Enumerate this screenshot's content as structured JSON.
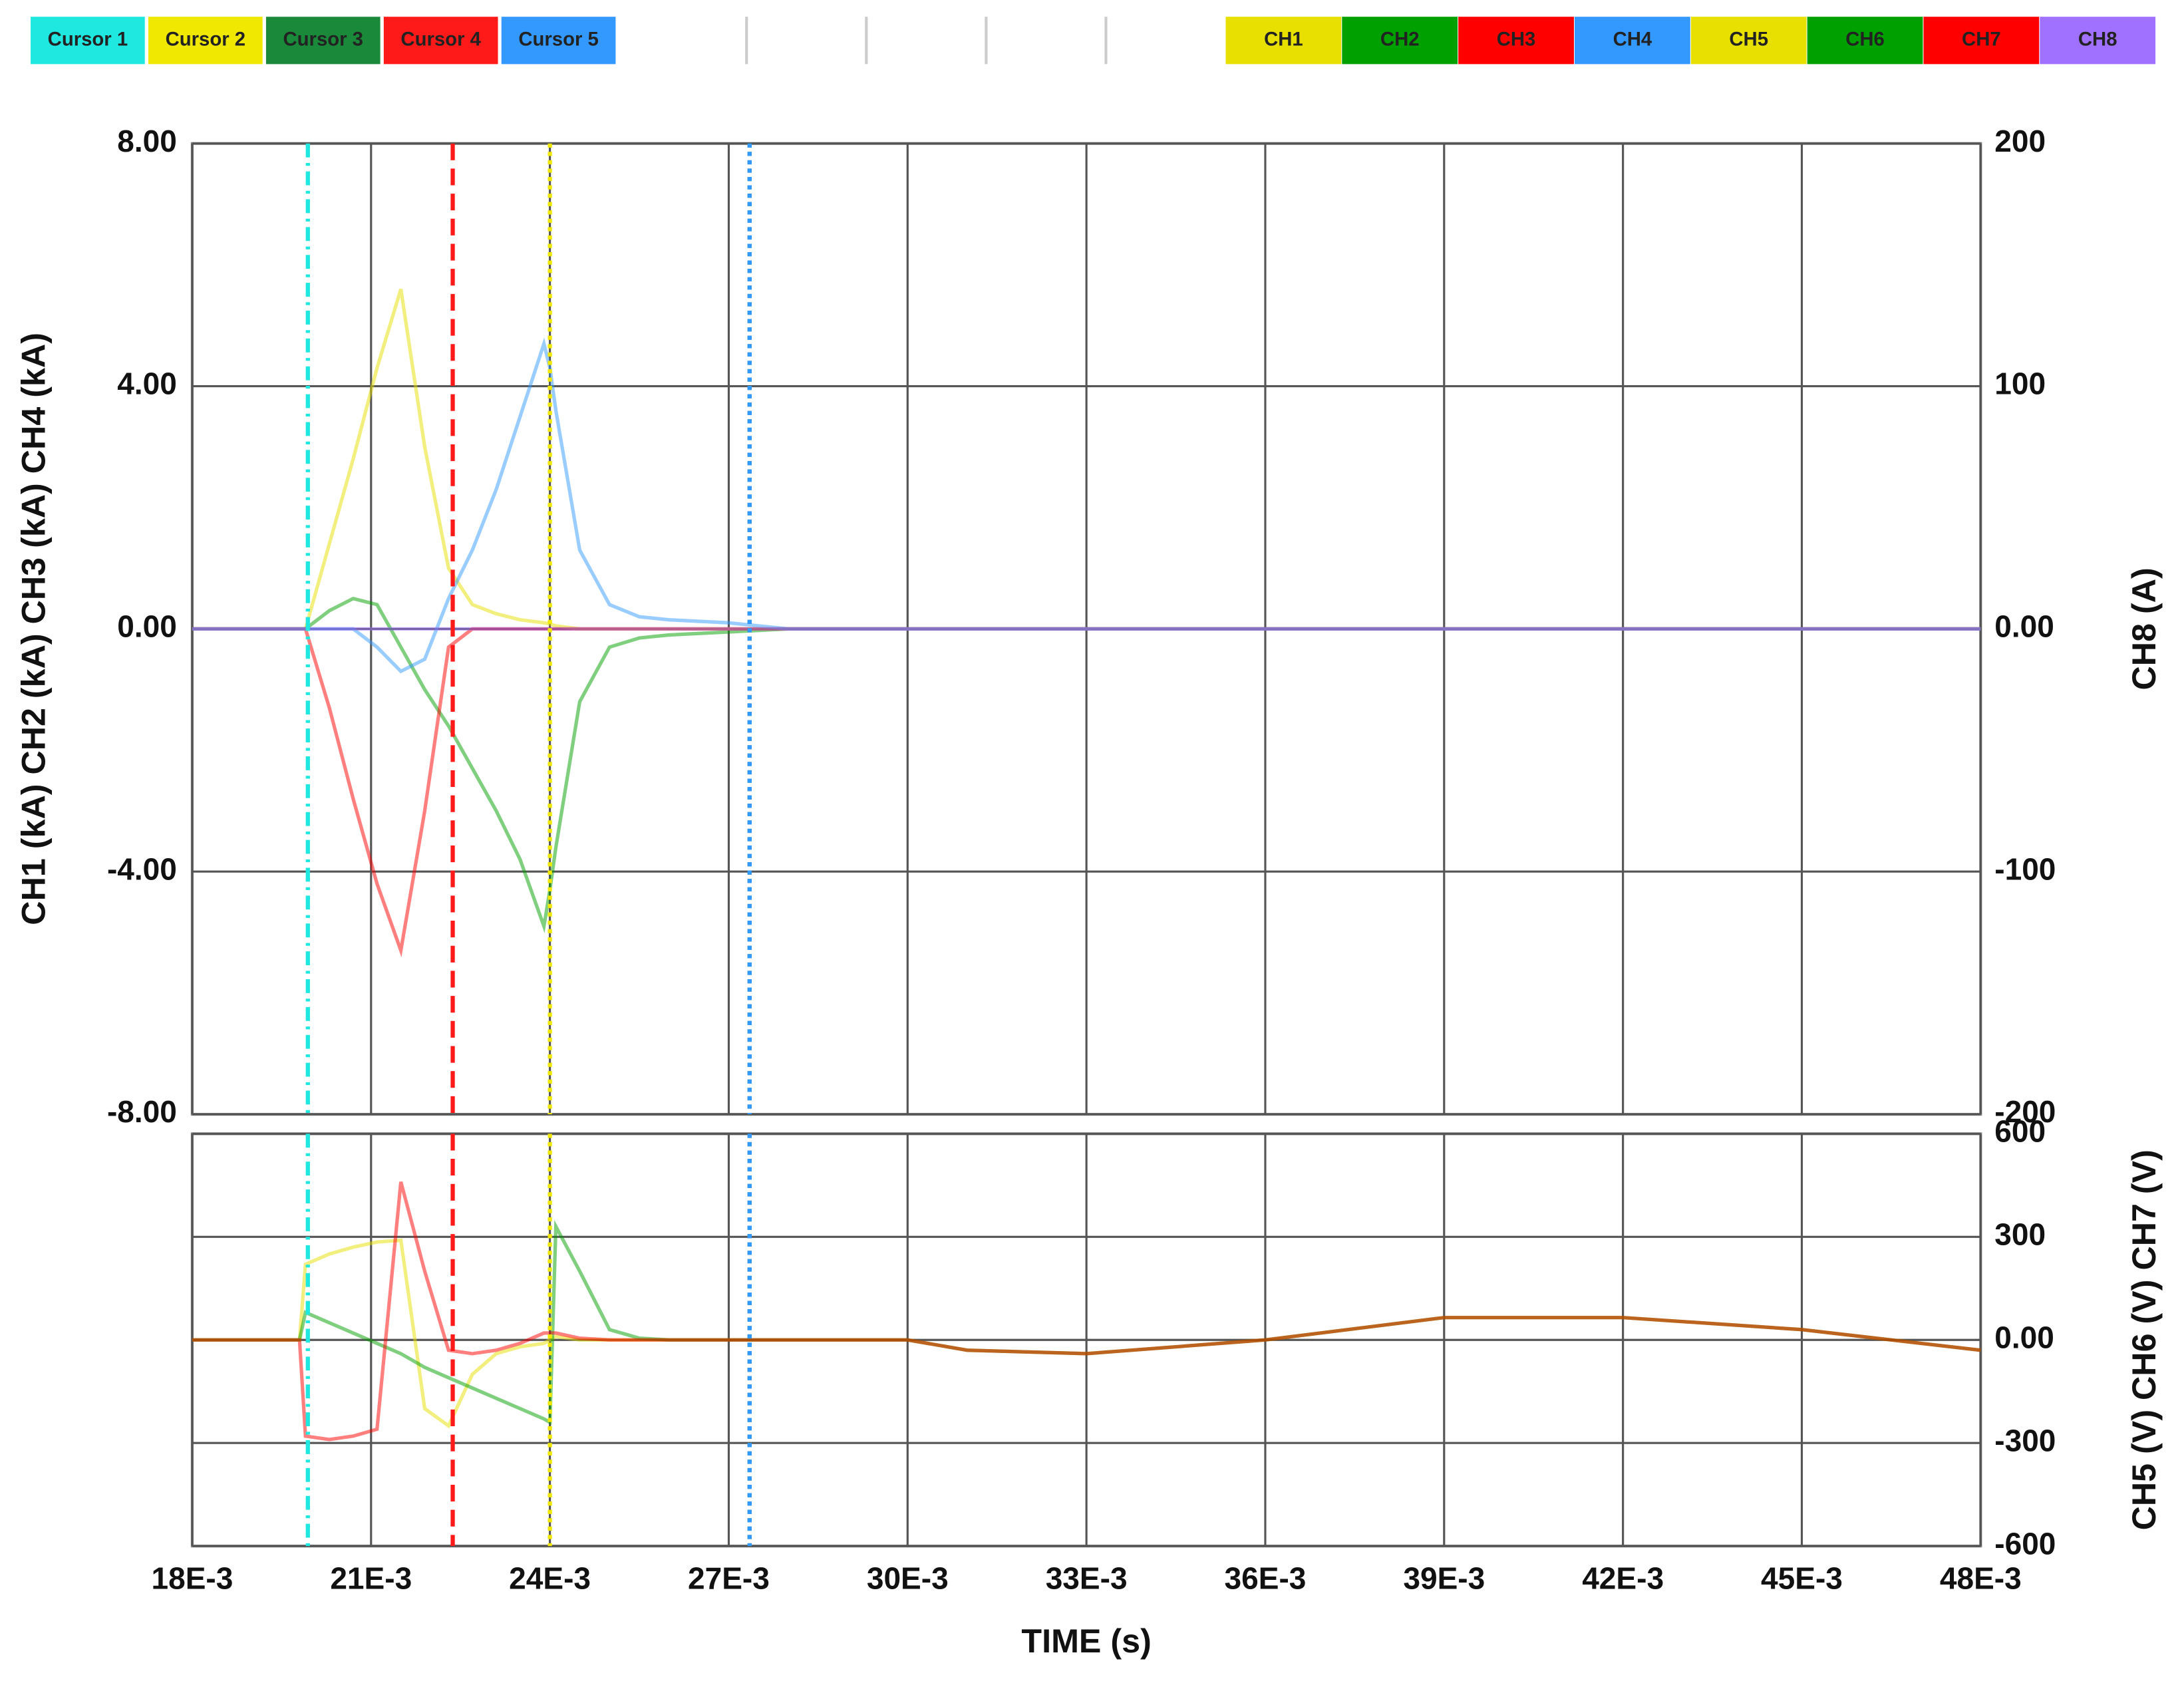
{
  "cursors": [
    {
      "name": "Cursor 1",
      "color": "#1ee8e0",
      "x": 0.01994
    },
    {
      "name": "Cursor 2",
      "color": "#f0e800",
      "x": 0.024
    },
    {
      "name": "Cursor 3",
      "color": "#1a8a3a",
      "x": 0.02735
    },
    {
      "name": "Cursor 4",
      "color": "#ff1a1a",
      "x": 0.02237
    },
    {
      "name": "Cursor 5",
      "color": "#3399ff",
      "x": 0.02735
    }
  ],
  "chart_data": [
    {
      "type": "line",
      "ylabel": "CH1 (kA) CH2 (kA) CH3 (kA) CH4 (kA)",
      "y2label": "CH8 (A)",
      "x": [
        0.018,
        0.0198,
        0.0199,
        0.0203,
        0.0207,
        0.0211,
        0.0215,
        0.0219,
        0.0223,
        0.0227,
        0.0231,
        0.0235,
        0.0239,
        0.024,
        0.0241,
        0.0245,
        0.025,
        0.0255,
        0.026,
        0.027,
        0.028,
        0.03,
        0.031,
        0.033,
        0.036,
        0.039,
        0.042,
        0.045,
        0.048
      ],
      "xlim": [
        0.018,
        0.048
      ],
      "xticks": [
        0.018,
        0.021,
        0.024,
        0.027,
        0.03,
        0.033,
        0.036,
        0.039,
        0.042,
        0.045,
        0.048
      ],
      "ylim": [
        -8,
        8
      ],
      "yticks": [
        {
          "value": 8,
          "label": "8.00"
        },
        {
          "value": 4,
          "label": "4.00"
        },
        {
          "value": 0,
          "label": "0.00"
        },
        {
          "value": -4,
          "label": "-4.00"
        },
        {
          "value": -8,
          "label": "-8.00"
        }
      ],
      "y2lim": [
        -200,
        200
      ],
      "y2ticks": [
        200,
        100,
        {
          "value": 0,
          "label": "0.00"
        },
        -100,
        -200
      ],
      "grid": true,
      "series": [
        {
          "name": "CH1",
          "color": "#e8e000",
          "values": [
            0,
            0,
            0,
            1.4,
            2.8,
            4.3,
            5.6,
            3.0,
            1.0,
            0.4,
            0.25,
            0.15,
            0.1,
            0.08,
            0.05,
            0,
            0,
            0,
            0,
            0,
            0,
            0,
            0,
            0,
            0,
            0,
            0,
            0,
            0
          ]
        },
        {
          "name": "CH2",
          "color": "#00a000",
          "values": [
            0,
            0,
            0,
            0.3,
            0.5,
            0.4,
            -0.3,
            -1.0,
            -1.6,
            -2.3,
            -3.0,
            -3.8,
            -4.9,
            -4.3,
            -3.6,
            -1.2,
            -0.3,
            -0.15,
            -0.1,
            -0.05,
            0,
            0,
            0,
            0,
            0,
            0,
            0,
            0,
            0
          ]
        },
        {
          "name": "CH3",
          "color": "#ff0000",
          "values": [
            0,
            0,
            0,
            -1.3,
            -2.8,
            -4.2,
            -5.3,
            -3.0,
            -0.3,
            0,
            0,
            0,
            0,
            0,
            0,
            0,
            0,
            0,
            0,
            0,
            0,
            0,
            0,
            0,
            0,
            0,
            0,
            0,
            0
          ]
        },
        {
          "name": "CH4",
          "color": "#3399ff",
          "values": [
            0,
            0,
            0,
            0,
            0,
            -0.3,
            -0.7,
            -0.5,
            0.5,
            1.3,
            2.3,
            3.5,
            4.7,
            4.3,
            3.6,
            1.3,
            0.4,
            0.2,
            0.15,
            0.1,
            0,
            0,
            0,
            0,
            0,
            0,
            0,
            0,
            0
          ]
        },
        {
          "name": "CH8",
          "color": "#a070ff",
          "axis": "y2",
          "values": [
            0,
            0,
            0,
            0,
            0,
            0,
            0,
            0,
            0,
            0,
            0,
            0,
            0,
            0,
            0,
            0,
            0,
            0,
            0,
            0,
            0,
            0,
            0,
            0,
            0,
            0,
            0,
            0,
            0
          ]
        }
      ]
    },
    {
      "type": "line",
      "xlabel": "TIME (s)",
      "y2label": "CH5 (V) CH6 (V) CH7 (V)",
      "x": [
        0.018,
        0.0198,
        0.0199,
        0.0203,
        0.0207,
        0.0211,
        0.0215,
        0.0219,
        0.0223,
        0.0227,
        0.0231,
        0.0235,
        0.0239,
        0.024,
        0.0241,
        0.0245,
        0.025,
        0.0255,
        0.026,
        0.027,
        0.028,
        0.03,
        0.031,
        0.033,
        0.036,
        0.039,
        0.042,
        0.045,
        0.048
      ],
      "xlim": [
        0.018,
        0.048
      ],
      "xticks": [
        {
          "value": 0.018,
          "label": "18E-3"
        },
        {
          "value": 0.021,
          "label": "21E-3"
        },
        {
          "value": 0.024,
          "label": "24E-3"
        },
        {
          "value": 0.027,
          "label": "27E-3"
        },
        {
          "value": 0.03,
          "label": "30E-3"
        },
        {
          "value": 0.033,
          "label": "33E-3"
        },
        {
          "value": 0.036,
          "label": "36E-3"
        },
        {
          "value": 0.039,
          "label": "39E-3"
        },
        {
          "value": 0.042,
          "label": "42E-3"
        },
        {
          "value": 0.045,
          "label": "45E-3"
        },
        {
          "value": 0.048,
          "label": "48E-3"
        }
      ],
      "y2lim": [
        -600,
        600
      ],
      "y2ticks": [
        600,
        300,
        {
          "value": 0,
          "label": "0.00"
        },
        -300,
        -600
      ],
      "grid": true,
      "series": [
        {
          "name": "CH5",
          "color": "#e8e000",
          "axis": "y2",
          "values": [
            0,
            0,
            220,
            250,
            270,
            285,
            290,
            -200,
            -250,
            -100,
            -40,
            -20,
            -10,
            0,
            10,
            0,
            0,
            0,
            0,
            0,
            0,
            0,
            -30,
            -40,
            0,
            65,
            65,
            30,
            -30
          ]
        },
        {
          "name": "CH6",
          "color": "#00a000",
          "axis": "y2",
          "values": [
            0,
            0,
            80,
            50,
            20,
            -10,
            -40,
            -80,
            -110,
            -140,
            -170,
            -200,
            -230,
            -240,
            330,
            200,
            30,
            5,
            0,
            0,
            0,
            0,
            -30,
            -40,
            0,
            65,
            65,
            30,
            -30
          ]
        },
        {
          "name": "CH7",
          "color": "#ff0000",
          "axis": "y2",
          "values": [
            0,
            0,
            -280,
            -290,
            -280,
            -260,
            460,
            200,
            -30,
            -40,
            -30,
            -10,
            20,
            20,
            20,
            5,
            0,
            0,
            0,
            0,
            0,
            0,
            -30,
            -40,
            0,
            65,
            65,
            30,
            -30
          ]
        }
      ]
    }
  ]
}
